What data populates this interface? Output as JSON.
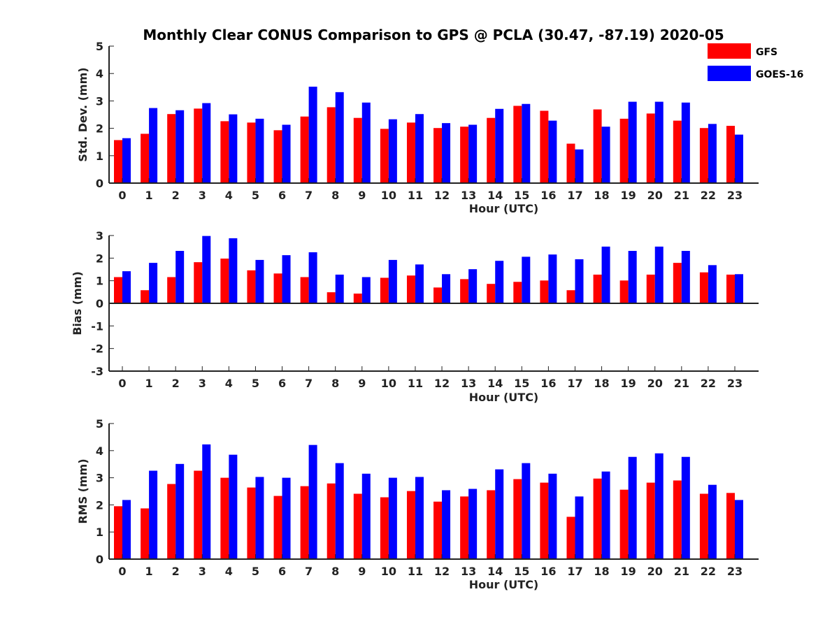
{
  "chart_data": {
    "type": "bar",
    "title": "Monthly Clear CONUS Comparison to GPS @ PCLA (30.47, -87.19) 2020-05",
    "legend": {
      "placement": "top-right",
      "entries": [
        {
          "name": "GFS",
          "color": "#ff0000"
        },
        {
          "name": "GOES-16",
          "color": "#0000ff"
        }
      ]
    },
    "categories": [
      "0",
      "1",
      "2",
      "3",
      "4",
      "5",
      "6",
      "7",
      "8",
      "9",
      "10",
      "11",
      "12",
      "13",
      "14",
      "15",
      "16",
      "17",
      "18",
      "19",
      "20",
      "21",
      "22",
      "23"
    ],
    "panels": [
      {
        "ylabel": "Std. Dev. (mm)",
        "xlabel": "Hour (UTC)",
        "ylim": [
          0,
          5
        ],
        "yticks": [
          "0",
          "1",
          "2",
          "3",
          "4",
          "5"
        ],
        "grid": false,
        "series": [
          {
            "name": "GFS",
            "values": [
              1.57,
              1.8,
              2.52,
              2.72,
              2.26,
              2.21,
              1.93,
              2.43,
              2.77,
              2.38,
              1.98,
              2.21,
              2.01,
              2.06,
              2.38,
              2.82,
              2.64,
              1.44,
              2.69,
              2.35,
              2.54,
              2.28,
              2.01,
              2.09
            ]
          },
          {
            "name": "GOES-16",
            "values": [
              1.64,
              2.74,
              2.66,
              2.92,
              2.51,
              2.35,
              2.13,
              3.52,
              3.32,
              2.94,
              2.33,
              2.52,
              2.19,
              2.13,
              2.71,
              2.89,
              2.28,
              1.23,
              2.06,
              2.97,
              2.97,
              2.94,
              2.16,
              1.77
            ]
          }
        ]
      },
      {
        "ylabel": "Bias (mm)",
        "xlabel": "Hour (UTC)",
        "ylim": [
          -3,
          3
        ],
        "yticks": [
          "-3",
          "-2",
          "-1",
          "0",
          "1",
          "2",
          "3"
        ],
        "grid": false,
        "series": [
          {
            "name": "GFS",
            "values": [
              1.16,
              0.58,
              1.16,
              1.82,
              1.98,
              1.46,
              1.32,
              1.16,
              0.49,
              0.43,
              1.13,
              1.23,
              0.7,
              1.07,
              0.86,
              0.95,
              1.01,
              0.58,
              1.27,
              1.01,
              1.27,
              1.79,
              1.37,
              1.27
            ]
          },
          {
            "name": "GOES-16",
            "values": [
              1.42,
              1.79,
              2.32,
              2.98,
              2.88,
              1.92,
              2.13,
              2.26,
              1.27,
              1.16,
              1.92,
              1.72,
              1.29,
              1.51,
              1.88,
              2.06,
              2.16,
              1.95,
              2.51,
              2.32,
              2.51,
              2.32,
              1.69,
              1.29
            ]
          }
        ]
      },
      {
        "ylabel": "RMS (mm)",
        "xlabel": "Hour (UTC)",
        "ylim": [
          0,
          5
        ],
        "yticks": [
          "0",
          "1",
          "2",
          "3",
          "4",
          "5"
        ],
        "grid": false,
        "series": [
          {
            "name": "GFS",
            "values": [
              1.95,
              1.87,
              2.77,
              3.26,
              3.0,
              2.64,
              2.33,
              2.69,
              2.79,
              2.41,
              2.28,
              2.51,
              2.12,
              2.31,
              2.54,
              2.95,
              2.82,
              1.56,
              2.97,
              2.56,
              2.82,
              2.9,
              2.41,
              2.44
            ]
          },
          {
            "name": "GOES-16",
            "values": [
              2.18,
              3.26,
              3.51,
              4.23,
              3.85,
              3.03,
              3.0,
              4.21,
              3.54,
              3.15,
              3.0,
              3.03,
              2.54,
              2.59,
              3.31,
              3.54,
              3.15,
              2.31,
              3.23,
              3.77,
              3.9,
              3.77,
              2.74,
              2.18
            ]
          }
        ]
      }
    ]
  }
}
